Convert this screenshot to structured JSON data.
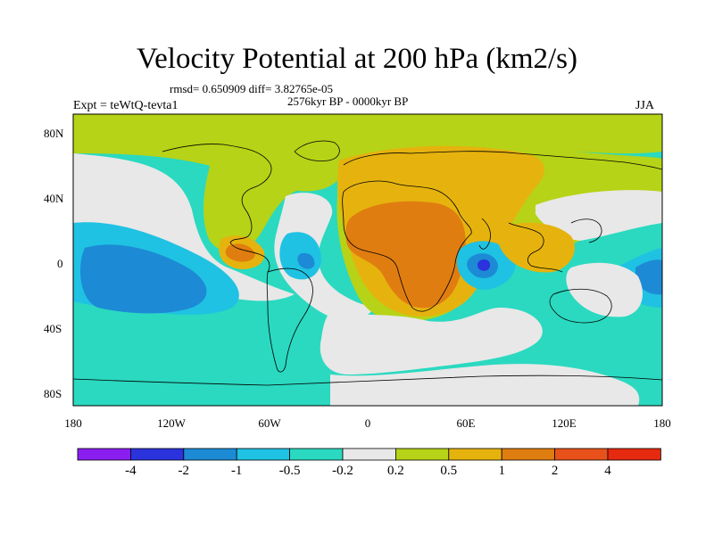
{
  "title": "Velocity Potential at 200 hPa (km2/s)",
  "stats": "rmsd= 0.650909 diff= 3.82765e-05",
  "period": "2576kyr BP - 0000kyr BP",
  "experiment": "Expt = teWtQ-tevta1",
  "season": "JJA",
  "lat_ticks": [
    "80N",
    "40N",
    "0",
    "40S",
    "80S"
  ],
  "lon_ticks": [
    "180",
    "120W",
    "60W",
    "0",
    "60E",
    "120E",
    "180"
  ],
  "colorbar": {
    "labels": [
      "-4",
      "-2",
      "-1",
      "-0.5",
      "-0.2",
      "0.2",
      "0.5",
      "1",
      "2",
      "4"
    ],
    "colors": [
      "#8a1ef0",
      "#2b33dd",
      "#1d8ad6",
      "#1fc2e2",
      "#2ad9c0",
      "#e8e8e8",
      "#b6d317",
      "#e6b30e",
      "#e07d10",
      "#e8521a",
      "#e62a10"
    ]
  }
}
